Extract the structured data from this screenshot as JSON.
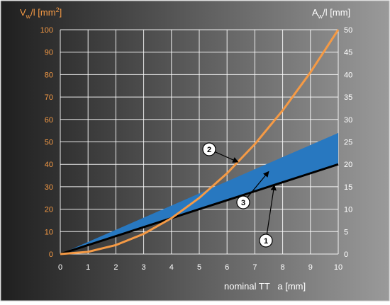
{
  "chart_data": {
    "type": "line",
    "x": [
      0,
      1,
      2,
      3,
      4,
      5,
      6,
      7,
      8,
      9,
      10
    ],
    "xlim": [
      0,
      10
    ],
    "xticks": [
      "0",
      "1",
      "2",
      "3",
      "4",
      "5",
      "6",
      "7",
      "8",
      "9",
      "10"
    ],
    "xlabel": "nominal TT   a [mm]",
    "y_left": {
      "label_main": "V",
      "label_sub": "w",
      "label_rest": "/l [mm",
      "label_sup": "2",
      "label_close": "]",
      "lim": [
        0,
        100
      ],
      "ticks": [
        "0",
        "10",
        "20",
        "30",
        "40",
        "50",
        "60",
        "70",
        "80",
        "90",
        "100"
      ],
      "color": "#f59a45"
    },
    "y_right": {
      "label_main": "A",
      "label_sub": "w",
      "label_rest": "/l [mm]",
      "lim": [
        0,
        50
      ],
      "ticks": [
        "0",
        "5",
        "10",
        "15",
        "20",
        "25",
        "30",
        "35",
        "40",
        "45",
        "50"
      ],
      "color": "#ffffff"
    },
    "grid": true,
    "series": [
      {
        "axis": "right",
        "values": [
          0,
          2,
          4,
          6,
          8,
          10,
          12,
          14,
          16,
          18,
          20
        ],
        "color": "#000000"
      },
      {
        "axis": "left",
        "values": [
          0,
          1,
          4,
          9,
          16,
          25,
          36,
          49,
          64,
          81,
          100
        ],
        "color": "#f59a45"
      },
      {
        "axis": "right",
        "values_lower": [
          0,
          2,
          4,
          6,
          8,
          10,
          12,
          14,
          16,
          18,
          20
        ],
        "values_upper": [
          0,
          2.7,
          5.4,
          8.1,
          10.8,
          13.5,
          16.2,
          18.9,
          21.6,
          24.3,
          27
        ],
        "color": "#2878c0"
      }
    ],
    "callouts": [
      {
        "label": "1",
        "points_to": [
          7.7,
          15.4
        ],
        "axis": "right"
      },
      {
        "label": "2",
        "points_to": [
          6.4,
          41
        ],
        "axis": "left"
      },
      {
        "label": "3",
        "points_to": [
          7.5,
          18.4
        ],
        "axis": "right"
      }
    ]
  }
}
